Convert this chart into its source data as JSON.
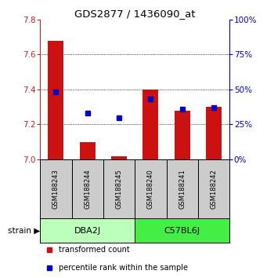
{
  "title": "GDS2877 / 1436090_at",
  "samples": [
    "GSM188243",
    "GSM188244",
    "GSM188245",
    "GSM188240",
    "GSM188241",
    "GSM188242"
  ],
  "group_dba2j": {
    "name": "DBA2J",
    "color": "#bbffbb",
    "start": 0,
    "end": 2
  },
  "group_c57bl6j": {
    "name": "C57BL6J",
    "color": "#44ee44",
    "start": 3,
    "end": 5
  },
  "bar_bottom": 7.0,
  "transformed_counts": [
    7.68,
    7.1,
    7.02,
    7.4,
    7.28,
    7.3
  ],
  "percentile_ranks": [
    48,
    33,
    30,
    43,
    36,
    37
  ],
  "ylim_left": [
    7.0,
    7.8
  ],
  "ylim_right": [
    0,
    100
  ],
  "yticks_left": [
    7.0,
    7.2,
    7.4,
    7.6,
    7.8
  ],
  "yticks_right": [
    0,
    25,
    50,
    75,
    100
  ],
  "bar_color": "#cc1111",
  "dot_color": "#0000cc",
  "left_axis_color": "#cc2222",
  "right_axis_color": "#0000bb",
  "sample_bg_color": "#cccccc",
  "bar_width": 0.5,
  "dot_size": 4,
  "legend_items": [
    {
      "color": "#cc1111",
      "marker": "s",
      "label": "transformed count"
    },
    {
      "color": "#0000cc",
      "marker": "s",
      "label": "percentile rank within the sample"
    }
  ]
}
